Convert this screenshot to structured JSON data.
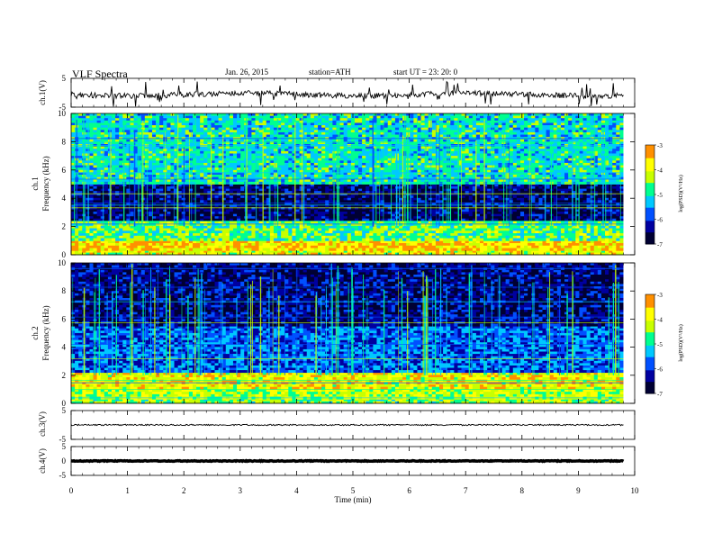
{
  "header": {
    "title": "VLF  Spectra",
    "date": "Jan. 26, 2015",
    "station": "station=ATH",
    "start": "start  UT  =   23: 20: 0"
  },
  "colors": {
    "background": "#ffffff",
    "axis": "#000000",
    "colormap": [
      "#000033",
      "#0000a0",
      "#0050ff",
      "#00c8ff",
      "#00ff90",
      "#c8ff00",
      "#ffff00",
      "#ff9000",
      "#ff2000",
      "#ffffff"
    ]
  },
  "chart_data": [
    {
      "type": "line",
      "panel": "ch1-waveform",
      "ylabel": "ch.1(V)",
      "ylim": [
        -5,
        5
      ],
      "yticks": [
        "5",
        "-5"
      ],
      "xlim": [
        0,
        10
      ],
      "baseline": 0,
      "noise": "dense spikes"
    },
    {
      "type": "heatmap",
      "panel": "ch1-spectrogram",
      "ylabel_line1": "ch.1",
      "ylabel_line2": "Frequency  (kHz)",
      "ylim": [
        0,
        10
      ],
      "yticks": [
        "0",
        "2",
        "4",
        "6",
        "8",
        "10"
      ],
      "xlim": [
        0,
        9.8
      ],
      "colorbar": {
        "label": "log(PSD)(V²/Hz)",
        "range": [
          -7,
          -3
        ],
        "ticks": [
          "-3",
          "-4",
          "-5",
          "-6",
          "-7"
        ]
      },
      "bands": [
        {
          "from": 0,
          "to": 0.3,
          "level": 0.75
        },
        {
          "from": 0.3,
          "to": 1.0,
          "level": 0.85
        },
        {
          "from": 1.0,
          "to": 2.4,
          "level": 0.6
        },
        {
          "from": 2.4,
          "to": 5.0,
          "level": 0.12
        },
        {
          "from": 5.0,
          "to": 10.0,
          "level": 0.5
        }
      ]
    },
    {
      "type": "heatmap",
      "panel": "ch2-spectrogram",
      "ylabel_line1": "ch.2",
      "ylabel_line2": "Frequency  (kHz)",
      "ylim": [
        0,
        10
      ],
      "yticks": [
        "0",
        "2",
        "4",
        "6",
        "8",
        "10"
      ],
      "xlim": [
        0,
        9.8
      ],
      "colorbar": {
        "label": "log(PSD)(V²/Hz)",
        "range": [
          -7,
          -3
        ],
        "ticks": [
          "-3",
          "-4",
          "-5",
          "-6",
          "-7"
        ]
      },
      "bands": [
        {
          "from": 0,
          "to": 0.3,
          "level": 0.65
        },
        {
          "from": 0.3,
          "to": 1.0,
          "level": 0.7
        },
        {
          "from": 1.0,
          "to": 2.2,
          "level": 0.78
        },
        {
          "from": 2.2,
          "to": 5.5,
          "level": 0.32
        },
        {
          "from": 5.5,
          "to": 10.0,
          "level": 0.15
        }
      ]
    },
    {
      "type": "line",
      "panel": "ch3-waveform",
      "ylabel": "ch.3(V)",
      "ylim": [
        -5,
        5
      ],
      "yticks": [
        "5",
        "-5"
      ],
      "xlim": [
        0,
        10
      ],
      "baseline": 0,
      "noise": "low"
    },
    {
      "type": "line",
      "panel": "ch4-waveform",
      "ylabel": "ch.4(V)",
      "ylim": [
        -5,
        5
      ],
      "yticks": [
        "5",
        "0",
        "-5"
      ],
      "xlim": [
        0,
        10
      ],
      "baseline": 0,
      "noise": "thick"
    }
  ],
  "x_axis": {
    "label": "Time  (min)",
    "ticks": [
      "0",
      "1",
      "2",
      "3",
      "4",
      "5",
      "6",
      "7",
      "8",
      "9",
      "10"
    ]
  }
}
